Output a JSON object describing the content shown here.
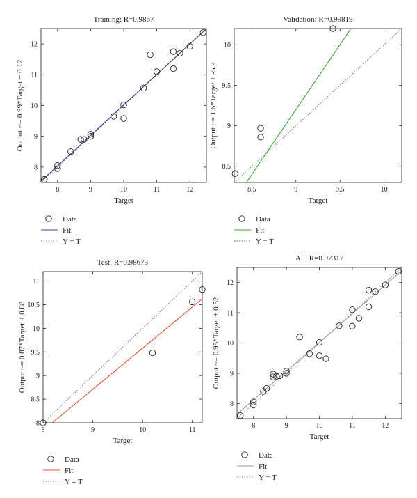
{
  "chart_data": [
    {
      "type": "scatter",
      "title": "Training: R=0.9867",
      "xlabel": "Target",
      "ylabel": "Output ~= 0.99*Target + 0.12",
      "xlim": [
        7.5,
        12.5
      ],
      "ylim": [
        7.5,
        12.5
      ],
      "xticks": [
        "8",
        "9",
        "10",
        "11",
        "12"
      ],
      "yticks": [
        "8",
        "9",
        "10",
        "11",
        "12"
      ],
      "fit_color": "#3b3b98",
      "fit": {
        "slope": 0.99,
        "intercept": 0.12
      },
      "grid": false,
      "legend": {
        "position": "below",
        "data": "Data",
        "fit": "Fit",
        "identity": "Y = T"
      },
      "series": [
        {
          "name": "Data",
          "points": [
            [
              7.6,
              7.6
            ],
            [
              8.0,
              7.95
            ],
            [
              8.0,
              8.05
            ],
            [
              8.4,
              8.5
            ],
            [
              8.7,
              8.9
            ],
            [
              8.8,
              8.9
            ],
            [
              9.0,
              9.0
            ],
            [
              9.0,
              9.07
            ],
            [
              9.7,
              9.65
            ],
            [
              10.0,
              9.58
            ],
            [
              10.0,
              10.02
            ],
            [
              10.6,
              10.57
            ],
            [
              10.8,
              11.65
            ],
            [
              11.0,
              11.1
            ],
            [
              11.5,
              11.2
            ],
            [
              11.5,
              11.75
            ],
            [
              11.7,
              11.7
            ],
            [
              12.0,
              11.92
            ],
            [
              12.4,
              12.37
            ]
          ]
        }
      ]
    },
    {
      "type": "scatter",
      "title": "Validation: R=0.99819",
      "xlabel": "Target",
      "ylabel": "Output ~= 1.6*Target + -5.2",
      "xlim": [
        8.3,
        10.2
      ],
      "ylim": [
        8.3,
        10.2
      ],
      "xticks": [
        "8.5",
        "9",
        "9.5",
        "10"
      ],
      "yticks": [
        "8.5",
        "9",
        "9.5",
        "10"
      ],
      "fit_color": "#3aa935",
      "fit": {
        "slope": 1.6,
        "intercept": -5.2
      },
      "grid": false,
      "legend": {
        "position": "below",
        "data": "Data",
        "fit": "Fit",
        "identity": "Y = T"
      },
      "series": [
        {
          "name": "Data",
          "points": [
            [
              8.31,
              8.41
            ],
            [
              8.6,
              8.86
            ],
            [
              8.6,
              8.97
            ],
            [
              9.42,
              10.2
            ]
          ]
        }
      ]
    },
    {
      "type": "scatter",
      "title": "Test: R=0.98673",
      "xlabel": "Target",
      "ylabel": "Output ~= 0.87*Target + 0.88",
      "xlim": [
        8.0,
        11.2
      ],
      "ylim": [
        8.0,
        11.2
      ],
      "xticks": [
        "8",
        "9",
        "10",
        "11"
      ],
      "yticks": [
        "8",
        "8.5",
        "9",
        "9.5",
        "10",
        "10.5",
        "11"
      ],
      "fit_color": "#e8522e",
      "fit": {
        "slope": 0.87,
        "intercept": 0.88
      },
      "grid": false,
      "legend": {
        "position": "below",
        "data": "Data",
        "fit": "Fit",
        "identity": "Y = T"
      },
      "series": [
        {
          "name": "Data",
          "points": [
            [
              8.0,
              8.0
            ],
            [
              10.2,
              9.48
            ],
            [
              11.0,
              10.56
            ],
            [
              11.2,
              10.82
            ]
          ]
        }
      ]
    },
    {
      "type": "scatter",
      "title": "All: R=0.97317",
      "xlabel": "Target",
      "ylabel": "Output ~= 0.95*Target + 0.52",
      "xlim": [
        7.5,
        12.5
      ],
      "ylim": [
        7.5,
        12.5
      ],
      "xticks": [
        "8",
        "9",
        "10",
        "11",
        "12"
      ],
      "yticks": [
        "8",
        "9",
        "10",
        "11",
        "12"
      ],
      "fit_color": "#9a9a9a",
      "fit": {
        "slope": 0.95,
        "intercept": 0.52
      },
      "grid": false,
      "legend": {
        "position": "below",
        "data": "Data",
        "fit": "Fit",
        "identity": "Y = T"
      },
      "series": [
        {
          "name": "Data",
          "points": [
            [
              7.6,
              7.6
            ],
            [
              8.0,
              7.95
            ],
            [
              8.0,
              8.05
            ],
            [
              8.3,
              8.4
            ],
            [
              8.4,
              8.5
            ],
            [
              8.6,
              8.88
            ],
            [
              8.6,
              8.97
            ],
            [
              8.7,
              8.9
            ],
            [
              8.8,
              8.92
            ],
            [
              9.0,
              9.0
            ],
            [
              9.0,
              9.07
            ],
            [
              9.4,
              10.2
            ],
            [
              9.7,
              9.65
            ],
            [
              10.0,
              9.58
            ],
            [
              10.0,
              10.02
            ],
            [
              10.2,
              9.48
            ],
            [
              10.6,
              10.57
            ],
            [
              11.0,
              10.56
            ],
            [
              11.0,
              11.1
            ],
            [
              11.2,
              10.82
            ],
            [
              11.5,
              11.2
            ],
            [
              11.5,
              11.75
            ],
            [
              11.7,
              11.7
            ],
            [
              12.0,
              11.92
            ],
            [
              12.4,
              12.37
            ]
          ]
        }
      ]
    }
  ]
}
